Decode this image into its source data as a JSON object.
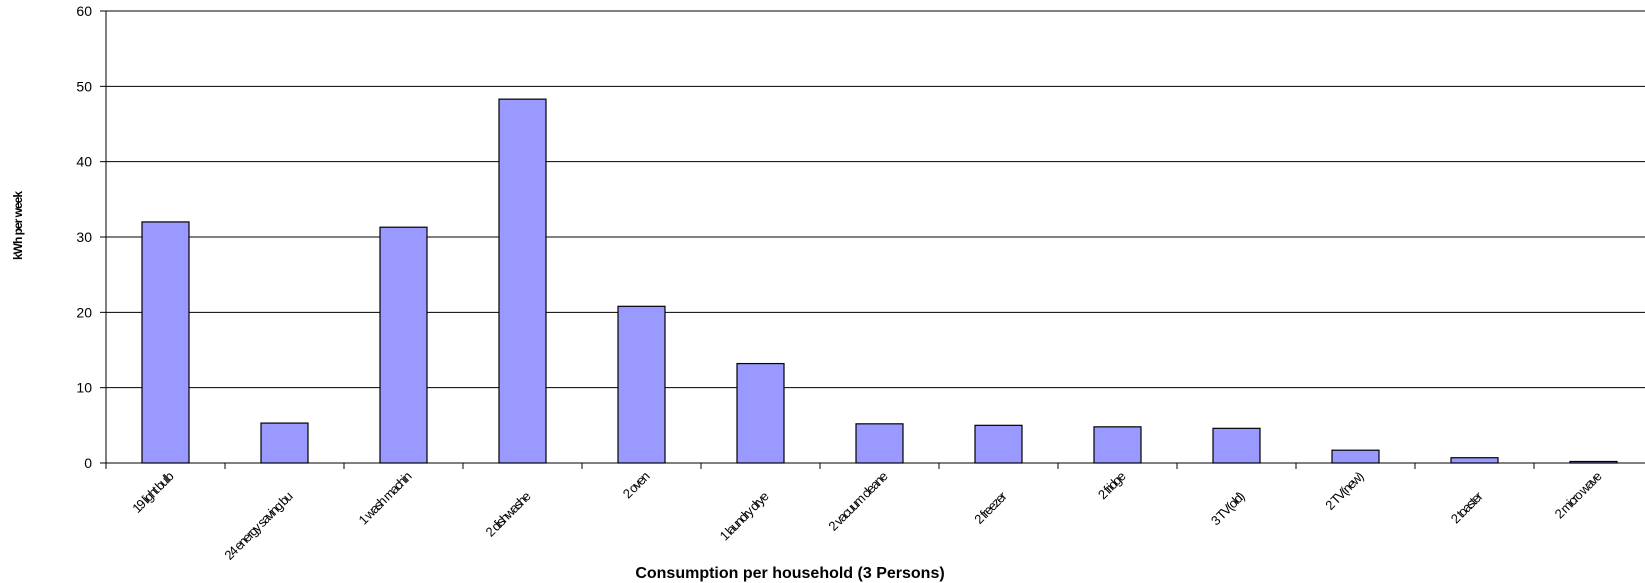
{
  "chart_data": {
    "type": "bar",
    "xlabel": "Consumption per household (3 Persons)",
    "ylabel": "kWh per week",
    "ylim": [
      0,
      60
    ],
    "yticks": [
      0,
      10,
      20,
      30,
      40,
      50,
      60
    ],
    "grid": true,
    "legend": "none",
    "bar_color": "#9999ff",
    "bar_edge_color": "#000000",
    "categories": [
      "19 light bulb",
      "24 energy saving bu",
      "1 wash machin",
      "2 dishwashe",
      "2 oven",
      "1 laundry drye",
      "2 vacuum cleane",
      "2 freezer",
      "2 fridge",
      "3 TV(old)",
      "2 TV(new)",
      "2 toaster",
      "2 micro wave",
      ""
    ],
    "values": [
      32,
      5.3,
      31.3,
      48.3,
      20.8,
      13.2,
      5.2,
      5.0,
      4.8,
      4.6,
      1.7,
      0.7,
      0.2,
      0
    ]
  }
}
